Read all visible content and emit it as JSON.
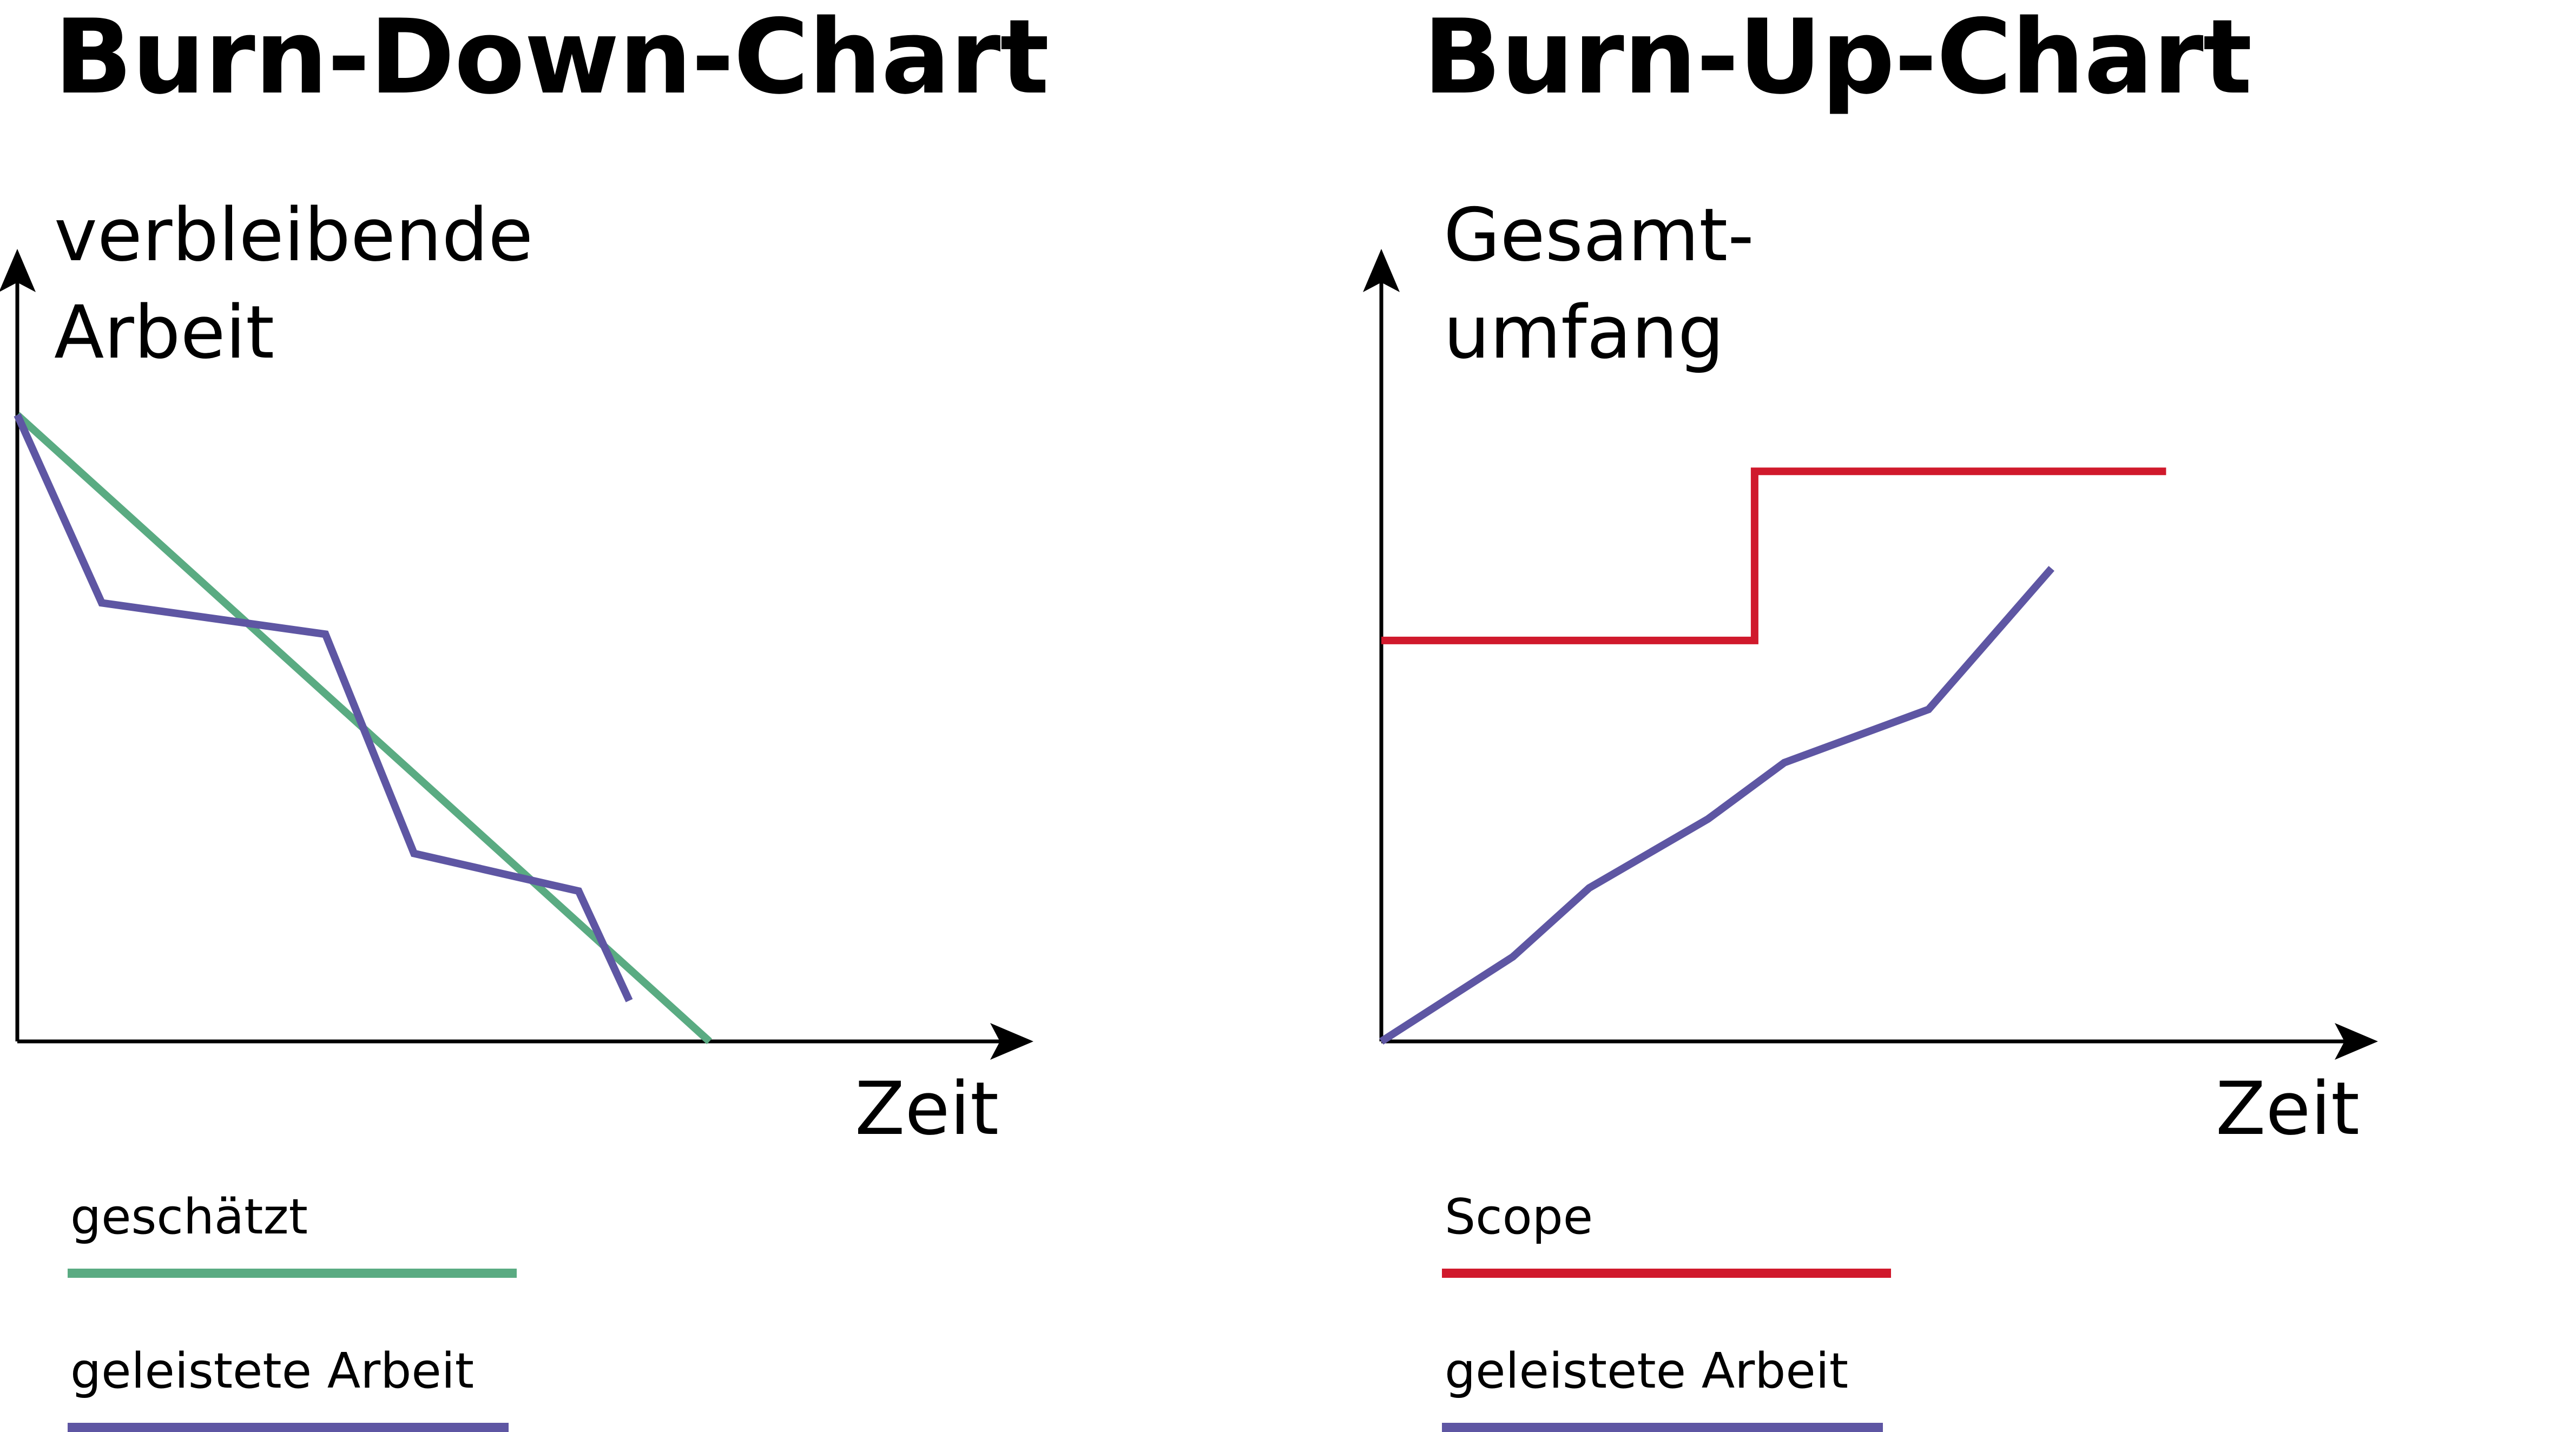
{
  "chart_data": [
    {
      "type": "line",
      "title": "Burn-Down-Chart",
      "ylabel_lines": [
        "verbleibende",
        "Arbeit"
      ],
      "xlabel": "Zeit",
      "xlim": [
        0,
        1
      ],
      "ylim": [
        0,
        1
      ],
      "grid": false,
      "legend_placement": "bottom-left",
      "series": [
        {
          "name": "geschätzt",
          "color": "#5aab82",
          "points": [
            [
              0,
              1
            ],
            [
              0.82,
              0
            ]
          ]
        },
        {
          "name": "geleistete Arbeit",
          "color": "#5e56a3",
          "points": [
            [
              0,
              1
            ],
            [
              0.1,
              0.7
            ],
            [
              0.365,
              0.65
            ],
            [
              0.47,
              0.3
            ],
            [
              0.665,
              0.24
            ],
            [
              0.725,
              0.065
            ]
          ]
        }
      ]
    },
    {
      "type": "line",
      "title": "Burn-Up-Chart",
      "ylabel_lines": [
        "Gesamt-",
        "umfang"
      ],
      "xlabel": "Zeit",
      "xlim": [
        0,
        1
      ],
      "ylim": [
        0,
        1
      ],
      "grid": false,
      "legend_placement": "bottom-left",
      "series": [
        {
          "name": "Scope",
          "color": "#d0192c",
          "points": [
            [
              0,
              0.64
            ],
            [
              0.44,
              0.64
            ],
            [
              0.44,
              0.91
            ],
            [
              0.925,
              0.91
            ]
          ]
        },
        {
          "name": "geleistete Arbeit",
          "color": "#5e56a3",
          "points": [
            [
              0,
              0
            ],
            [
              0.155,
              0.135
            ],
            [
              0.245,
              0.245
            ],
            [
              0.385,
              0.355
            ],
            [
              0.475,
              0.445
            ],
            [
              0.645,
              0.53
            ],
            [
              0.79,
              0.755
            ]
          ]
        }
      ]
    }
  ]
}
